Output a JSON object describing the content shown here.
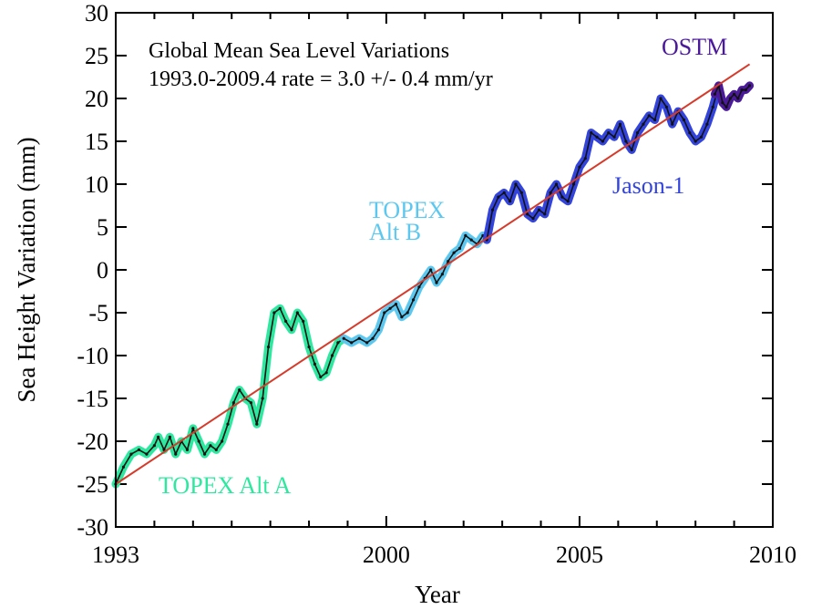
{
  "chart_data": {
    "type": "line",
    "title": "Global Mean Sea Level Variations",
    "subtitle": "1993.0-2009.4 rate =  3.0 +/- 0.4 mm/yr",
    "xlabel": "Year",
    "ylabel": "Sea Height Variation (mm)",
    "xlim": [
      1993,
      2010
    ],
    "ylim": [
      -30,
      30
    ],
    "x_tick_labels": [
      "1993",
      "2000",
      "2005",
      "2010"
    ],
    "x_tick_values": [
      1993,
      2000,
      2005,
      2010
    ],
    "y_ticks": [
      -30,
      -25,
      -20,
      -15,
      -10,
      -5,
      0,
      5,
      10,
      15,
      20,
      25,
      30
    ],
    "y_tick_labels": [
      "-30",
      "-25",
      "-20",
      "-15",
      "-10",
      "-5",
      "0",
      "5",
      "10",
      "15",
      "20",
      "25",
      "30"
    ],
    "grid": false,
    "trend_line": {
      "x": [
        1993.0,
        2009.4
      ],
      "y": [
        -25.0,
        24.0
      ],
      "color": "#d63a2a"
    },
    "series": [
      {
        "name": "TOPEX Alt A",
        "color": "#2ee8a0",
        "x": [
          1993.0,
          1993.2,
          1993.4,
          1993.6,
          1993.8,
          1994.0,
          1994.1,
          1994.25,
          1994.4,
          1994.55,
          1994.7,
          1994.85,
          1995.0,
          1995.15,
          1995.3,
          1995.45,
          1995.6,
          1995.75,
          1995.9,
          1996.05,
          1996.2,
          1996.35,
          1996.5,
          1996.65,
          1996.8,
          1996.95,
          1997.1,
          1997.25,
          1997.4,
          1997.55,
          1997.7,
          1997.85,
          1998.0,
          1998.15,
          1998.3,
          1998.45,
          1998.6,
          1998.75,
          1998.9
        ],
        "values": [
          -25.0,
          -23.0,
          -21.5,
          -21.0,
          -21.5,
          -20.5,
          -19.5,
          -21.0,
          -19.5,
          -21.5,
          -20.0,
          -21.0,
          -18.5,
          -20.0,
          -21.5,
          -20.5,
          -21.0,
          -20.0,
          -18.0,
          -15.5,
          -14.0,
          -15.0,
          -15.5,
          -18.0,
          -15.0,
          -9.0,
          -5.0,
          -4.5,
          -6.0,
          -7.0,
          -5.0,
          -6.0,
          -9.0,
          -11.0,
          -12.5,
          -12.0,
          -10.0,
          -8.5,
          -8.0
        ]
      },
      {
        "name": "TOPEX Alt B",
        "color": "#5cc8f0",
        "x": [
          1998.9,
          1999.1,
          1999.3,
          1999.5,
          1999.65,
          1999.8,
          1999.95,
          2000.1,
          2000.25,
          2000.4,
          2000.55,
          2000.7,
          2000.85,
          2001.0,
          2001.15,
          2001.3,
          2001.45,
          2001.6,
          2001.75,
          2001.9,
          2002.05,
          2002.2,
          2002.35,
          2002.5,
          2002.6
        ],
        "values": [
          -8.0,
          -8.5,
          -8.0,
          -8.5,
          -8.0,
          -7.0,
          -5.0,
          -4.5,
          -4.0,
          -5.5,
          -5.0,
          -3.5,
          -2.0,
          -1.0,
          0.0,
          -1.5,
          -0.5,
          1.0,
          2.0,
          2.5,
          4.0,
          3.5,
          3.0,
          4.0,
          3.5
        ]
      },
      {
        "name": "Jason-1",
        "color": "#3344dd",
        "x": [
          2002.6,
          2002.75,
          2002.9,
          2003.05,
          2003.2,
          2003.35,
          2003.5,
          2003.65,
          2003.8,
          2003.95,
          2004.1,
          2004.25,
          2004.4,
          2004.55,
          2004.7,
          2004.85,
          2005.0,
          2005.15,
          2005.3,
          2005.45,
          2005.6,
          2005.75,
          2005.9,
          2006.05,
          2006.2,
          2006.35,
          2006.5,
          2006.65,
          2006.8,
          2006.95,
          2007.1,
          2007.25,
          2007.4,
          2007.55,
          2007.7,
          2007.85,
          2008.0,
          2008.15,
          2008.3,
          2008.45,
          2008.6
        ],
        "values": [
          3.5,
          7.0,
          8.5,
          9.0,
          8.0,
          10.0,
          9.0,
          6.5,
          6.0,
          7.0,
          6.5,
          9.0,
          10.0,
          8.5,
          8.0,
          10.0,
          12.0,
          13.0,
          16.0,
          15.5,
          15.0,
          16.0,
          15.5,
          17.0,
          15.0,
          14.0,
          16.0,
          17.0,
          18.0,
          17.5,
          20.0,
          19.0,
          17.0,
          18.5,
          17.5,
          16.0,
          15.0,
          15.5,
          17.0,
          19.0,
          21.5
        ]
      },
      {
        "name": "OSTM",
        "color": "#4a1a9a",
        "x": [
          2008.5,
          2008.6,
          2008.7,
          2008.8,
          2008.9,
          2009.0,
          2009.1,
          2009.2,
          2009.3,
          2009.4
        ],
        "values": [
          20.5,
          21.5,
          19.5,
          19.0,
          20.0,
          20.5,
          20.0,
          21.0,
          21.0,
          21.5
        ]
      }
    ],
    "annotations": [
      {
        "text": "OSTM",
        "color": "#4a1a9a"
      },
      {
        "text": "Jason-1",
        "color": "#3344dd"
      },
      {
        "text": "TOPEX",
        "color": "#5cc8f0"
      },
      {
        "text": "Alt B",
        "color": "#5cc8f0"
      },
      {
        "text": "TOPEX Alt A",
        "color": "#2ee8a0"
      }
    ]
  }
}
